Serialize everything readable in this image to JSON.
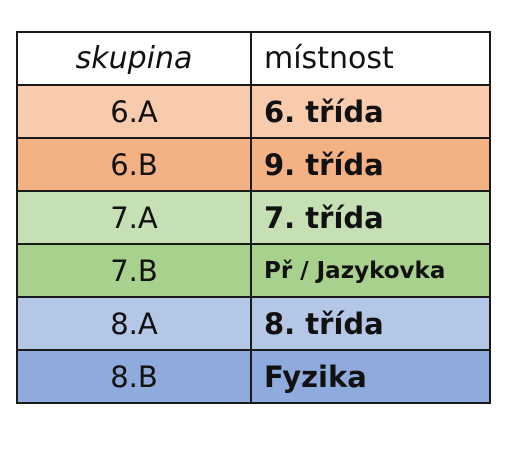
{
  "table": {
    "headers": {
      "group": "skupina",
      "room": "místnost"
    },
    "rows": [
      {
        "group": "6.A",
        "room": "6. třída",
        "color": "#f8cbad"
      },
      {
        "group": "6.B",
        "room": "9. třída",
        "color": "#f4b183"
      },
      {
        "group": "7.A",
        "room": "7. třída",
        "color": "#c5e0b4"
      },
      {
        "group": "7.B",
        "room": "Př / Jazykovka",
        "color": "#a9d18e"
      },
      {
        "group": "8.A",
        "room": "8. třída",
        "color": "#b4c7e7"
      },
      {
        "group": "8.B",
        "room": "Fyzika",
        "color": "#8faadc"
      }
    ]
  }
}
